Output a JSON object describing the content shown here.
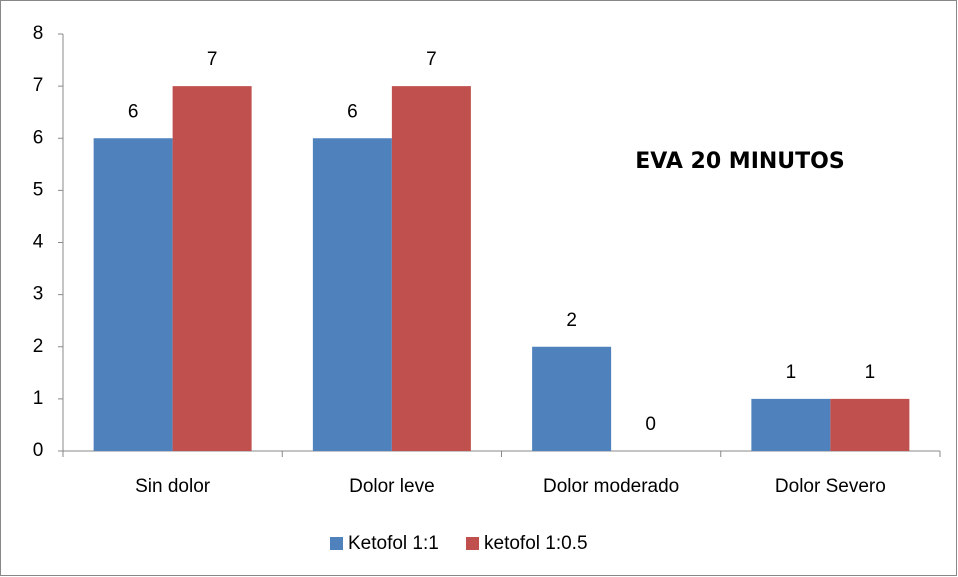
{
  "chart_data": {
    "type": "bar",
    "title": "EVA 20 MINUTOS",
    "categories": [
      "Sin dolor",
      "Dolor leve",
      "Dolor moderado",
      "Dolor Severo"
    ],
    "series": [
      {
        "name": "Ketofol 1:1",
        "color": "#4f81bd",
        "values": [
          6,
          6,
          2,
          1
        ]
      },
      {
        "name": "ketofol 1:0.5",
        "color": "#c0504d",
        "values": [
          7,
          7,
          0,
          1
        ]
      }
    ],
    "ylim": [
      0,
      8
    ],
    "yticks": [
      0,
      1,
      2,
      3,
      4,
      5,
      6,
      7,
      8
    ],
    "grid": false,
    "legend": "bottom"
  }
}
